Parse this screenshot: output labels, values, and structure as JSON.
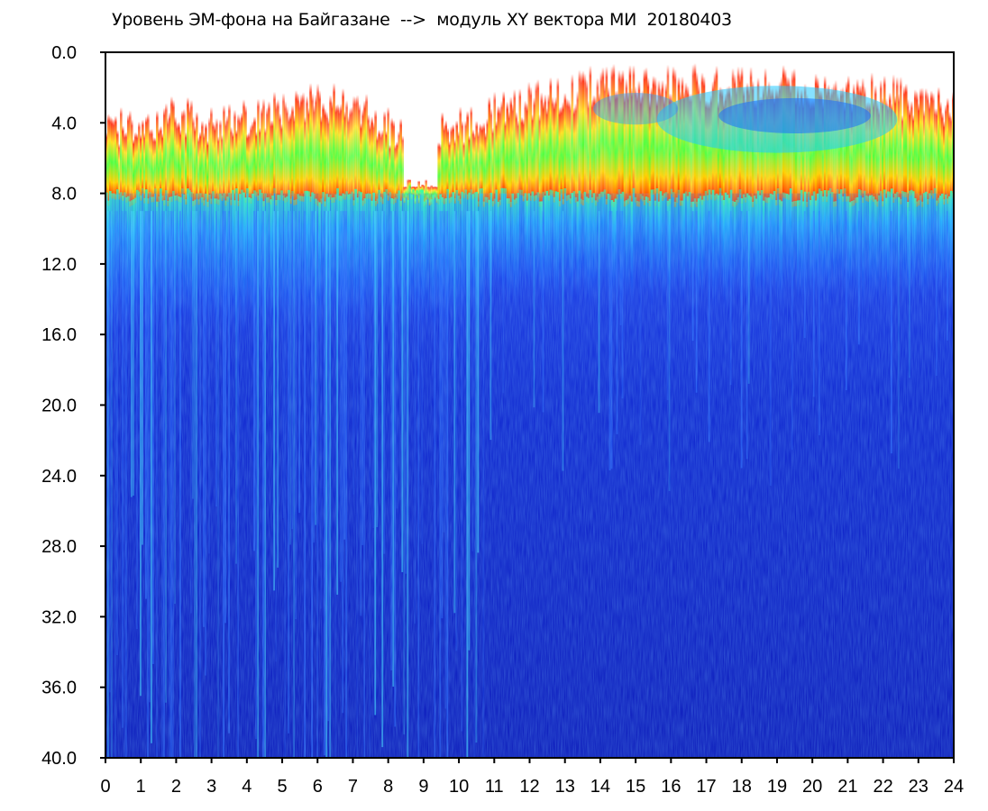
{
  "chart_data": {
    "type": "heatmap",
    "title": "Уровень ЭМ-фона на Байгазане  -->  модуль XY вектора МИ  20180403",
    "xlabel": "",
    "ylabel": "",
    "xlim": [
      0,
      24
    ],
    "ylim": [
      0,
      40
    ],
    "y_axis_inverted": true,
    "x_ticks": [
      "0",
      "1",
      "2",
      "3",
      "4",
      "5",
      "6",
      "7",
      "8",
      "9",
      "10",
      "11",
      "12",
      "13",
      "14",
      "15",
      "16",
      "17",
      "18",
      "19",
      "20",
      "21",
      "22",
      "23",
      "24"
    ],
    "y_ticks": [
      "0.0",
      "4.0",
      "8.0",
      "12.0",
      "16.0",
      "20.0",
      "24.0",
      "28.0",
      "32.0",
      "36.0",
      "40.0"
    ],
    "grid": false,
    "legend": "none",
    "colormap": [
      "#0010c8",
      "#00c8ff",
      "#40ff40",
      "#ffff00",
      "#ff2000"
    ],
    "background": "#ffffff",
    "hot_band_top_profile": {
      "x": [
        0,
        1,
        2,
        3,
        4,
        5,
        6,
        7,
        8,
        9,
        10,
        11,
        12,
        13,
        14,
        15,
        16,
        17,
        18,
        19,
        20,
        21,
        22,
        23,
        24
      ],
      "y": [
        3.5,
        3.5,
        2.5,
        3.5,
        3.0,
        2.5,
        2.0,
        2.0,
        3.5,
        4.0,
        3.5,
        2.5,
        2.0,
        1.5,
        1.0,
        1.0,
        1.0,
        1.0,
        1.0,
        1.0,
        1.0,
        1.5,
        1.5,
        2.0,
        2.5
      ]
    },
    "hot_band_bottom": 8.0,
    "cyan_zone_bottom": 15.0
  }
}
